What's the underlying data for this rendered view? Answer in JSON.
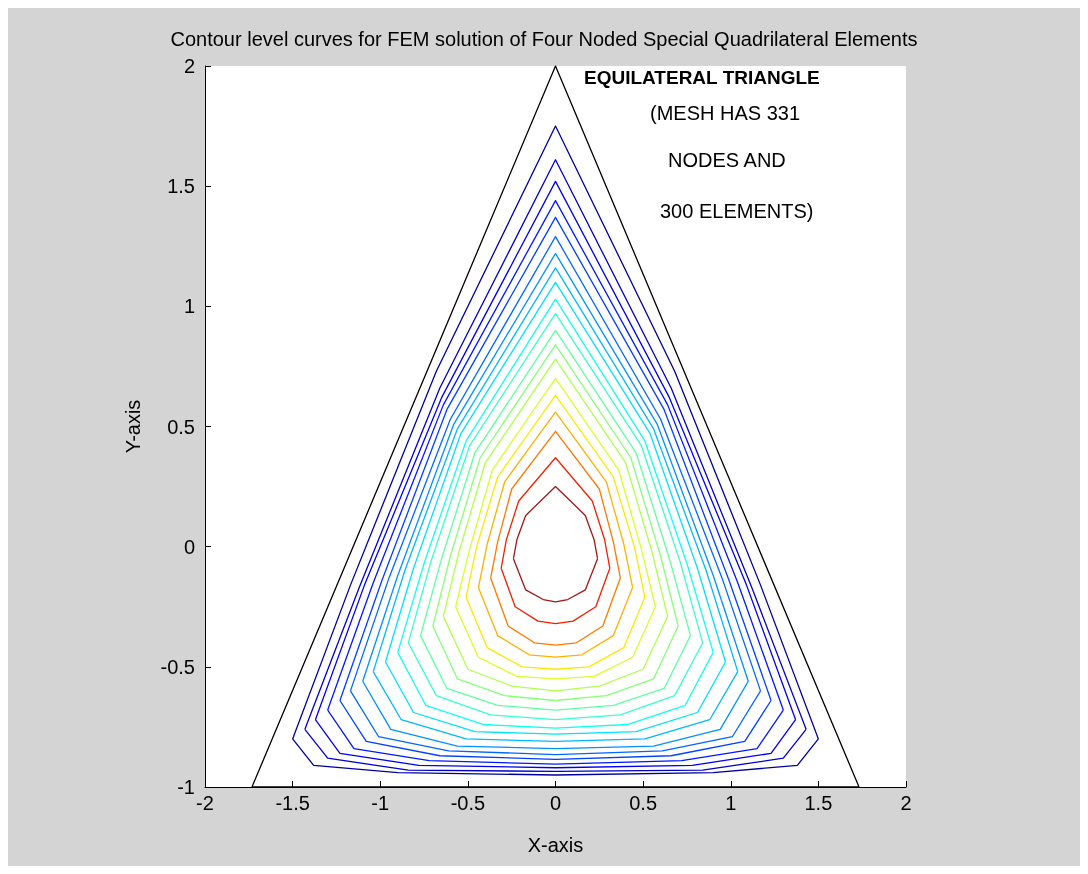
{
  "chart_data": {
    "type": "line",
    "title": "Contour level curves for FEM solution of Four Noded Special Quadrilateral Elements",
    "xlabel": "X-axis",
    "ylabel": "Y-axis",
    "annotations": [
      "EQUILATERAL TRIANGLE",
      "(MESH HAS 331",
      "NODES AND",
      "300 ELEMENTS)"
    ],
    "xlim": [
      -2,
      2
    ],
    "xticks": [
      -2,
      -1.5,
      -1,
      -0.5,
      0,
      0.5,
      1,
      1.5,
      2
    ],
    "ylim": [
      -1,
      2
    ],
    "yticks": [
      -1,
      -0.5,
      0,
      0.5,
      1,
      1.5,
      2
    ],
    "grid": false,
    "marker": "none",
    "line_style": "solid",
    "series": [
      {
        "color": "#000000",
        "x": [
          -1.732,
          0,
          1.732
        ],
        "values": [
          -1,
          2,
          -1
        ]
      },
      {
        "color": "#000000",
        "x": [
          -1.732,
          1.732
        ],
        "values": [
          -1,
          -1
        ]
      },
      {
        "color": "#0000a0",
        "x": [
          -1.5,
          -1.17,
          -0.68,
          0,
          0.68,
          1.17,
          1.5
        ],
        "values": [
          -0.8,
          -0.16,
          0.73,
          1.75,
          0.73,
          -0.16,
          -0.8
        ]
      },
      {
        "color": "#0000a0",
        "x": [
          -1.5,
          -1.38,
          -0.9,
          0,
          0.9,
          1.38,
          1.5
        ],
        "values": [
          -0.8,
          -0.91,
          -0.94,
          -0.95,
          -0.94,
          -0.91,
          -0.8
        ]
      },
      {
        "color": "#0000c8",
        "x": [
          -1.43,
          -1.12,
          -0.66,
          0,
          0.66,
          1.12,
          1.43
        ],
        "values": [
          -0.76,
          -0.17,
          0.66,
          1.61,
          0.66,
          -0.17,
          -0.76
        ]
      },
      {
        "color": "#0000c8",
        "x": [
          -1.43,
          -1.3,
          -0.84,
          0,
          0.84,
          1.3,
          1.43
        ],
        "values": [
          -0.76,
          -0.88,
          -0.93,
          -0.935,
          -0.93,
          -0.88,
          -0.76
        ]
      },
      {
        "color": "#0000f0",
        "x": [
          -1.37,
          -1.09,
          -0.65,
          0,
          0.65,
          1.09,
          1.37
        ],
        "values": [
          -0.72,
          -0.16,
          0.62,
          1.52,
          0.62,
          -0.16,
          -0.72
        ]
      },
      {
        "color": "#0000f0",
        "x": [
          -1.37,
          -1.23,
          -0.78,
          0,
          0.78,
          1.23,
          1.37
        ],
        "values": [
          -0.72,
          -0.86,
          -0.91,
          -0.92,
          -0.91,
          -0.86,
          -0.72
        ]
      },
      {
        "color": "#0018ff",
        "x": [
          -1.3,
          -1.04,
          -0.64,
          0,
          0.64,
          1.04,
          1.3
        ],
        "values": [
          -0.68,
          -0.15,
          0.59,
          1.44,
          0.59,
          -0.15,
          -0.68
        ]
      },
      {
        "color": "#0018ff",
        "x": [
          -1.3,
          -1.15,
          -0.72,
          0,
          0.72,
          1.15,
          1.3
        ],
        "values": [
          -0.68,
          -0.84,
          -0.89,
          -0.905,
          -0.89,
          -0.84,
          -0.68
        ]
      },
      {
        "color": "#0040ff",
        "x": [
          -1.23,
          -0.99,
          -0.62,
          0,
          0.62,
          0.99,
          1.23
        ],
        "values": [
          -0.64,
          -0.14,
          0.57,
          1.37,
          0.57,
          -0.14,
          -0.64
        ]
      },
      {
        "color": "#0040ff",
        "x": [
          -1.23,
          -1.08,
          -0.66,
          0,
          0.66,
          1.08,
          1.23
        ],
        "values": [
          -0.64,
          -0.81,
          -0.87,
          -0.885,
          -0.87,
          -0.81,
          -0.64
        ]
      },
      {
        "color": "#0068ff",
        "x": [
          -1.17,
          -0.95,
          -0.6,
          0,
          0.6,
          0.95,
          1.17
        ],
        "values": [
          -0.6,
          -0.13,
          0.53,
          1.29,
          0.53,
          -0.13,
          -0.6
        ]
      },
      {
        "color": "#0068ff",
        "x": [
          -1.17,
          -1.01,
          -0.61,
          0,
          0.61,
          1.01,
          1.17
        ],
        "values": [
          -0.6,
          -0.79,
          -0.85,
          -0.865,
          -0.85,
          -0.79,
          -0.6
        ]
      },
      {
        "color": "#0090ff",
        "x": [
          -1.1,
          -0.9,
          -0.58,
          0,
          0.58,
          0.9,
          1.1
        ],
        "values": [
          -0.56,
          -0.12,
          0.51,
          1.22,
          0.51,
          -0.12,
          -0.56
        ]
      },
      {
        "color": "#0090ff",
        "x": [
          -1.1,
          -0.94,
          -0.56,
          0,
          0.56,
          0.94,
          1.1
        ],
        "values": [
          -0.56,
          -0.76,
          -0.83,
          -0.84,
          -0.83,
          -0.76,
          -0.56
        ]
      },
      {
        "color": "#00b8ff",
        "x": [
          -1.04,
          -0.86,
          -0.56,
          0,
          0.56,
          0.86,
          1.04
        ],
        "values": [
          -0.52,
          -0.1,
          0.49,
          1.16,
          0.49,
          -0.1,
          -0.52
        ]
      },
      {
        "color": "#00b8ff",
        "x": [
          -1.04,
          -0.88,
          -0.51,
          0,
          0.51,
          0.88,
          1.04
        ],
        "values": [
          -0.52,
          -0.72,
          -0.8,
          -0.81,
          -0.8,
          -0.72,
          -0.52
        ]
      },
      {
        "color": "#00e0ff",
        "x": [
          -0.97,
          -0.81,
          -0.54,
          0,
          0.54,
          0.81,
          0.97
        ],
        "values": [
          -0.48,
          -0.09,
          0.47,
          1.1,
          0.47,
          -0.09,
          -0.48
        ]
      },
      {
        "color": "#00e0ff",
        "x": [
          -0.97,
          -0.81,
          -0.46,
          0,
          0.46,
          0.81,
          0.97
        ],
        "values": [
          -0.48,
          -0.69,
          -0.77,
          -0.78,
          -0.77,
          -0.69,
          -0.48
        ]
      },
      {
        "color": "#10fff0",
        "x": [
          -0.9,
          -0.75,
          -0.51,
          0,
          0.51,
          0.75,
          0.9
        ],
        "values": [
          -0.44,
          -0.07,
          0.44,
          1.03,
          0.44,
          -0.07,
          -0.44
        ]
      },
      {
        "color": "#10fff0",
        "x": [
          -0.9,
          -0.74,
          -0.41,
          0,
          0.41,
          0.74,
          0.9
        ],
        "values": [
          -0.44,
          -0.66,
          -0.74,
          -0.755,
          -0.74,
          -0.66,
          -0.44
        ]
      },
      {
        "color": "#38ffc8",
        "x": [
          -0.84,
          -0.71,
          -0.49,
          0,
          0.49,
          0.71,
          0.84
        ],
        "values": [
          -0.4,
          -0.06,
          0.42,
          0.97,
          0.42,
          -0.06,
          -0.4
        ]
      },
      {
        "color": "#38ffc8",
        "x": [
          -0.84,
          -0.68,
          -0.37,
          0,
          0.37,
          0.68,
          0.84
        ],
        "values": [
          -0.4,
          -0.62,
          -0.7,
          -0.72,
          -0.7,
          -0.62,
          -0.4
        ]
      },
      {
        "color": "#60ffa0",
        "x": [
          -0.77,
          -0.65,
          -0.46,
          0,
          0.46,
          0.65,
          0.77
        ],
        "values": [
          -0.37,
          -0.05,
          0.39,
          0.9,
          0.39,
          -0.05,
          -0.37
        ]
      },
      {
        "color": "#60ffa0",
        "x": [
          -0.77,
          -0.62,
          -0.33,
          0,
          0.33,
          0.62,
          0.77
        ],
        "values": [
          -0.37,
          -0.59,
          -0.66,
          -0.68,
          -0.66,
          -0.59,
          -0.37
        ]
      },
      {
        "color": "#88ff78",
        "x": [
          -0.7,
          -0.6,
          -0.43,
          0,
          0.43,
          0.6,
          0.7
        ],
        "values": [
          -0.33,
          -0.04,
          0.37,
          0.84,
          0.37,
          -0.04,
          -0.33
        ]
      },
      {
        "color": "#88ff78",
        "x": [
          -0.7,
          -0.56,
          -0.29,
          0,
          0.29,
          0.56,
          0.7
        ],
        "values": [
          -0.33,
          -0.55,
          -0.62,
          -0.64,
          -0.62,
          -0.55,
          -0.33
        ]
      },
      {
        "color": "#b0ff50",
        "x": [
          -0.64,
          -0.55,
          -0.4,
          0,
          0.4,
          0.55,
          0.64
        ],
        "values": [
          -0.29,
          -0.02,
          0.35,
          0.78,
          0.35,
          -0.02,
          -0.29
        ]
      },
      {
        "color": "#b0ff50",
        "x": [
          -0.64,
          -0.5,
          -0.25,
          0,
          0.25,
          0.5,
          0.64
        ],
        "values": [
          -0.29,
          -0.51,
          -0.58,
          -0.6,
          -0.58,
          -0.51,
          -0.29
        ]
      },
      {
        "color": "#d8ff28",
        "x": [
          -0.57,
          -0.49,
          -0.36,
          0,
          0.36,
          0.49,
          0.57
        ],
        "values": [
          -0.25,
          -0.01,
          0.32,
          0.7,
          0.32,
          -0.01,
          -0.25
        ]
      },
      {
        "color": "#d8ff28",
        "x": [
          -0.57,
          -0.44,
          -0.22,
          0,
          0.22,
          0.44,
          0.57
        ],
        "values": [
          -0.25,
          -0.46,
          -0.54,
          -0.55,
          -0.54,
          -0.46,
          -0.25
        ]
      },
      {
        "color": "#ffe800",
        "x": [
          -0.51,
          -0.45,
          -0.33,
          0,
          0.33,
          0.45,
          0.51
        ],
        "values": [
          -0.21,
          0,
          0.29,
          0.63,
          0.29,
          0,
          -0.21
        ]
      },
      {
        "color": "#ffe800",
        "x": [
          -0.51,
          -0.39,
          -0.19,
          0,
          0.19,
          0.39,
          0.51
        ],
        "values": [
          -0.21,
          -0.42,
          -0.5,
          -0.51,
          -0.5,
          -0.42,
          -0.21
        ]
      },
      {
        "color": "#ffb000",
        "x": [
          -0.44,
          -0.39,
          -0.29,
          0,
          0.29,
          0.39,
          0.44
        ],
        "values": [
          -0.17,
          0.01,
          0.27,
          0.56,
          0.27,
          0.01,
          -0.17
        ]
      },
      {
        "color": "#ffb000",
        "x": [
          -0.44,
          -0.33,
          -0.15,
          0,
          0.15,
          0.33,
          0.44
        ],
        "values": [
          -0.17,
          -0.37,
          -0.45,
          -0.46,
          -0.45,
          -0.37,
          -0.17
        ]
      },
      {
        "color": "#ff7800",
        "x": [
          -0.37,
          -0.33,
          -0.25,
          0,
          0.25,
          0.33,
          0.37
        ],
        "values": [
          -0.13,
          0.02,
          0.24,
          0.48,
          0.24,
          0.02,
          -0.13
        ]
      },
      {
        "color": "#ff7800",
        "x": [
          -0.37,
          -0.27,
          -0.12,
          0,
          0.12,
          0.27,
          0.37
        ],
        "values": [
          -0.13,
          -0.33,
          -0.4,
          -0.41,
          -0.4,
          -0.33,
          -0.13
        ]
      },
      {
        "color": "#f02000",
        "x": [
          -0.31,
          -0.28,
          -0.21,
          0,
          0.21,
          0.28,
          0.31
        ],
        "values": [
          -0.09,
          0.03,
          0.19,
          0.37,
          0.19,
          0.03,
          -0.09
        ]
      },
      {
        "color": "#f02000",
        "x": [
          -0.31,
          -0.23,
          -0.1,
          0,
          0.1,
          0.23,
          0.31
        ],
        "values": [
          -0.09,
          -0.25,
          -0.31,
          -0.32,
          -0.31,
          -0.25,
          -0.09
        ]
      },
      {
        "color": "#a01818",
        "x": [
          -0.24,
          -0.22,
          -0.17,
          0,
          0.17,
          0.22,
          0.24
        ],
        "values": [
          -0.05,
          0.03,
          0.13,
          0.25,
          0.13,
          0.03,
          -0.05
        ]
      },
      {
        "color": "#a01818",
        "x": [
          -0.24,
          -0.17,
          -0.07,
          0,
          0.07,
          0.17,
          0.24
        ],
        "values": [
          -0.05,
          -0.18,
          -0.22,
          -0.23,
          -0.22,
          -0.18,
          -0.05
        ]
      }
    ]
  }
}
